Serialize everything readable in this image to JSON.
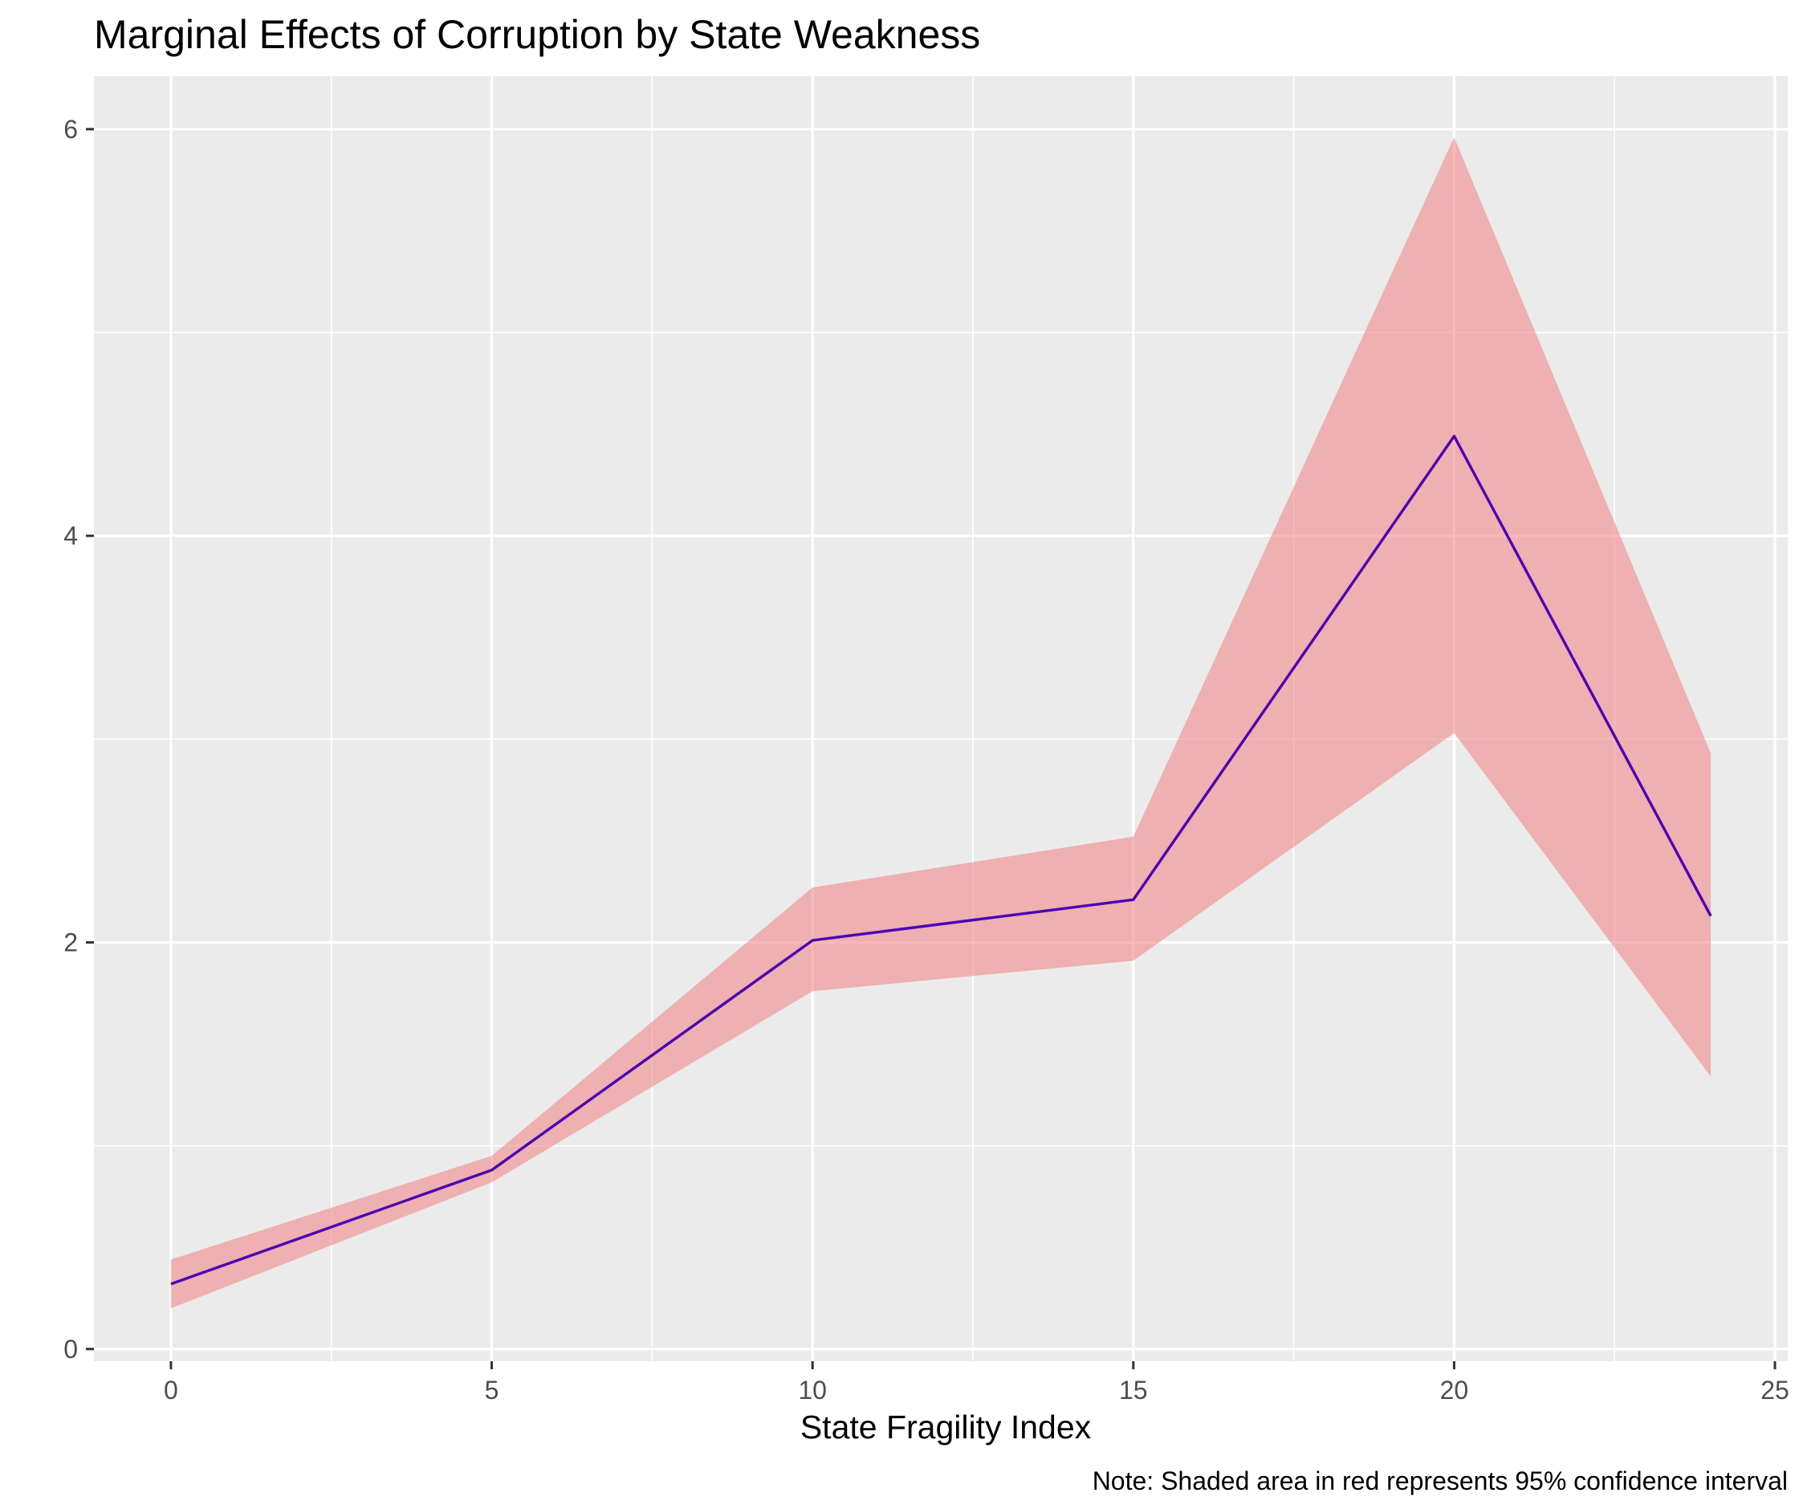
{
  "chart_data": {
    "type": "line",
    "title": "Marginal Effects of Corruption by State Weakness",
    "xlabel": "State Fragility Index",
    "ylabel": "",
    "caption": "Note: Shaded area in red represents 95% confidence interval",
    "xlim": [
      -1.2,
      25.2
    ],
    "ylim": [
      -0.06,
      6.26
    ],
    "x_ticks": [
      0,
      5,
      10,
      15,
      20,
      25
    ],
    "y_ticks": [
      0,
      2,
      4,
      6
    ],
    "grid": true,
    "legend": "none",
    "series": [
      {
        "x": [
          0,
          5,
          10,
          15,
          20,
          24
        ],
        "values": [
          0.32,
          0.88,
          2.01,
          2.21,
          4.49,
          2.13
        ],
        "lower": [
          0.2,
          0.82,
          1.76,
          1.91,
          3.03,
          1.34
        ],
        "upper": [
          0.44,
          0.95,
          2.27,
          2.52,
          5.96,
          2.93
        ]
      }
    ],
    "colors": {
      "line": "#4b00b4",
      "ribbon": "#f08080",
      "ribbon_opacity": 0.55,
      "panel": "#ebebeb",
      "grid": "#ffffff"
    }
  }
}
